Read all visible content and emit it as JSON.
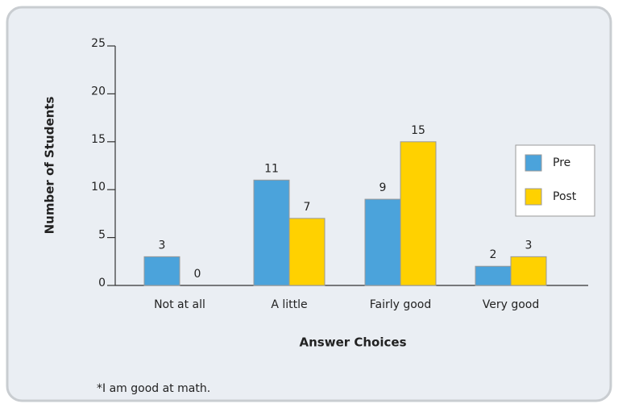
{
  "chart_data": {
    "type": "bar",
    "categories": [
      "Not at all",
      "A little",
      "Fairly good",
      "Very good"
    ],
    "series": [
      {
        "name": "Pre",
        "color": "#4ba3db",
        "values": [
          3,
          11,
          9,
          2
        ]
      },
      {
        "name": "Post",
        "color": "#ffd100",
        "values": [
          0,
          7,
          15,
          3
        ]
      }
    ],
    "ylim": [
      0,
      25
    ],
    "yticks": [
      0,
      5,
      10,
      15,
      20,
      25
    ],
    "y_label": "Number of Students",
    "x_label": "Answer Choices",
    "note": "*I am good at math.",
    "legend": "right"
  }
}
